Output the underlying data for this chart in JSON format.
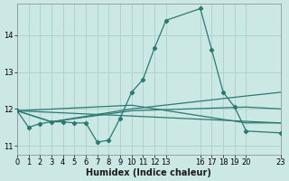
{
  "xlabel": "Humidex (Indice chaleur)",
  "background_color": "#cce8e5",
  "grid_color": "#aed4d0",
  "line_color": "#2a7a72",
  "xlim": [
    0,
    23
  ],
  "ylim": [
    10.75,
    14.85
  ],
  "yticks": [
    11,
    12,
    13,
    14
  ],
  "xticks": [
    0,
    1,
    2,
    3,
    4,
    5,
    6,
    7,
    8,
    9,
    10,
    11,
    12,
    13,
    16,
    17,
    18,
    19,
    20,
    23
  ],
  "xlabel_fontsize": 7,
  "tick_fontsize": 6,
  "series": [
    {
      "x": [
        0,
        1,
        2,
        3,
        4,
        5,
        6,
        7,
        8,
        9,
        10,
        11,
        12,
        13,
        16,
        17,
        18,
        19,
        20,
        23
      ],
      "y": [
        11.95,
        11.5,
        11.6,
        11.65,
        11.65,
        11.62,
        11.62,
        11.1,
        11.15,
        11.75,
        12.45,
        12.8,
        13.65,
        14.4,
        14.72,
        13.6,
        12.45,
        12.05,
        11.4,
        11.35
      ],
      "marker": true
    },
    {
      "x": [
        0,
        3,
        10,
        20,
        23
      ],
      "y": [
        11.95,
        11.65,
        11.95,
        12.05,
        12.0
      ],
      "marker": false
    },
    {
      "x": [
        0,
        3,
        10,
        20,
        23
      ],
      "y": [
        11.95,
        11.65,
        12.0,
        12.35,
        12.45
      ],
      "marker": false
    },
    {
      "x": [
        0,
        10,
        20,
        23
      ],
      "y": [
        11.95,
        12.1,
        11.62,
        11.62
      ],
      "marker": false
    },
    {
      "x": [
        0,
        23
      ],
      "y": [
        11.95,
        11.62
      ],
      "marker": false
    }
  ]
}
